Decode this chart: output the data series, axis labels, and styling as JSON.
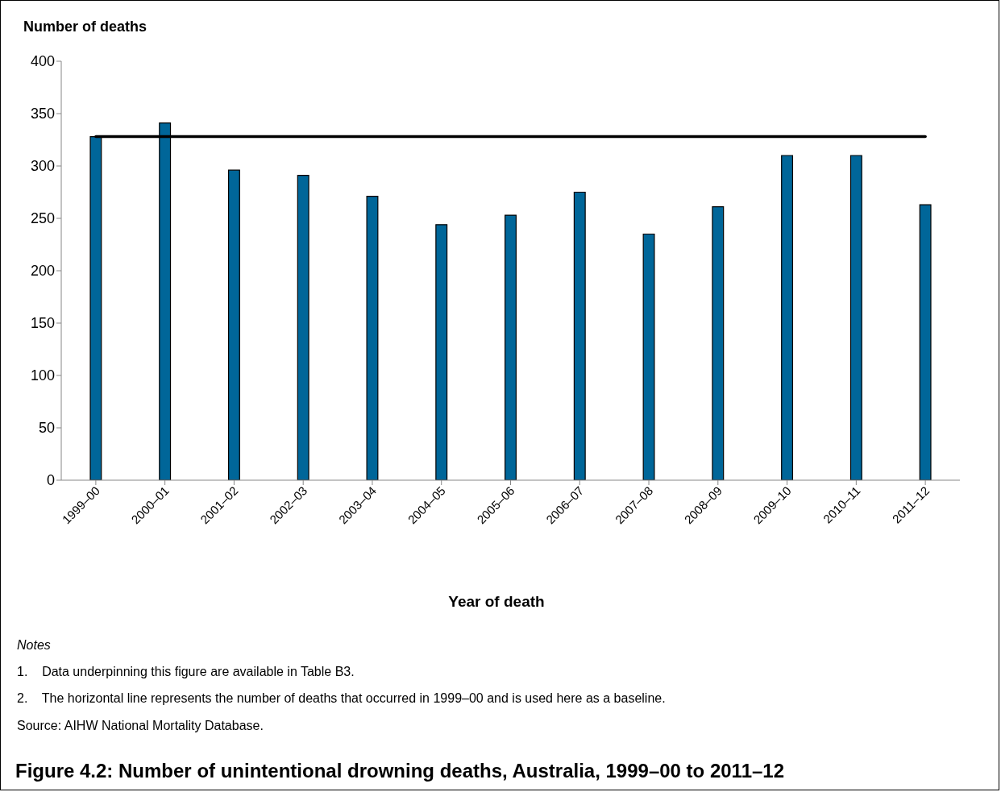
{
  "chart_data": {
    "type": "bar",
    "title": "Figure 4.2: Number of unintentional drowning deaths, Australia, 1999–00 to 2011–12",
    "ylabel": "Number of deaths",
    "xlabel": "Year of death",
    "categories": [
      "1999–00",
      "2000–01",
      "2001–02",
      "2002–03",
      "2003–04",
      "2004–05",
      "2005–06",
      "2006–07",
      "2007–08",
      "2008–09",
      "2009–10",
      "2010–11",
      "2011–12"
    ],
    "values": [
      328,
      341,
      296,
      291,
      271,
      244,
      253,
      275,
      235,
      261,
      310,
      310,
      263
    ],
    "color": "#006699",
    "ylim": [
      0,
      400
    ],
    "yticks": [
      0,
      50,
      100,
      150,
      200,
      250,
      300,
      350,
      400
    ],
    "ref_lines": [
      {
        "axis": "y",
        "value": 328,
        "color": "#000000",
        "line_style": "solid"
      }
    ],
    "annotations": [
      "Notes",
      "1.    Data underpinning this figure are available in Table B3.",
      "2.    The horizontal line represents the number of deaths that occurred in 1999–00 and is used here as a baseline.",
      "Source: AIHW National Mortality Database."
    ],
    "grid": false,
    "legend": false
  }
}
